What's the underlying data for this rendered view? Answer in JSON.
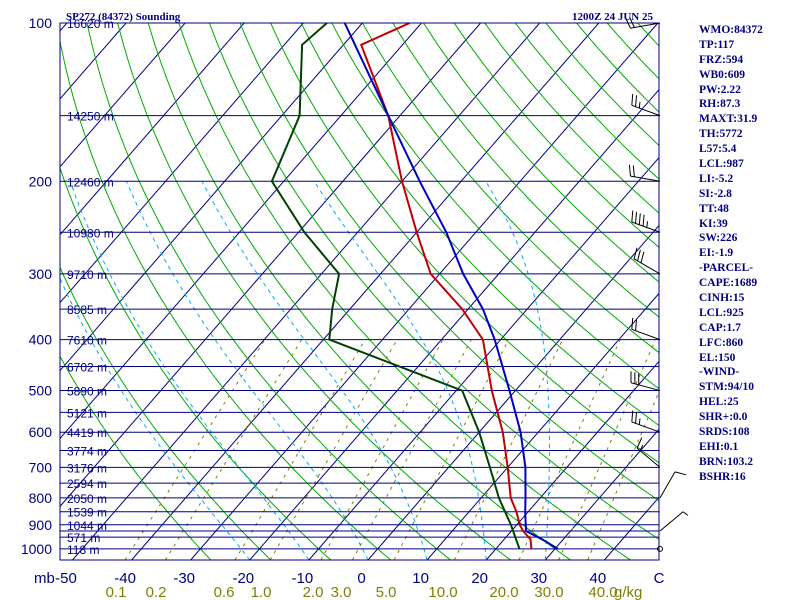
{
  "title_left": "SP272 (84372) Sounding",
  "title_right": "1200Z 24 JUN 25",
  "colors": {
    "axis": "#000080",
    "isobar": "#000080",
    "isotherm": "#000080",
    "dry_adiabat": "#00aa00",
    "moist_adiabat": "#00aaff",
    "mixing_ratio": "#808000",
    "temperature": "#c00000",
    "dewpoint": "#004000",
    "parcel": "#0000c0",
    "wind": "#000000"
  },
  "chart_data": {
    "type": "line",
    "diagram": "skew-t log-p",
    "pressure_axis": {
      "ticks": [
        100,
        200,
        300,
        400,
        500,
        600,
        700,
        800,
        900,
        1000
      ],
      "unit": "mb"
    },
    "temperature_axis": {
      "ticks": [
        -50,
        -40,
        -30,
        -20,
        -10,
        0,
        10,
        20,
        30,
        40
      ],
      "end_label": "C",
      "range": [
        -50,
        50
      ]
    },
    "mixing_ratio_axis": {
      "ticks": [
        "0.1",
        "0.2",
        "0.6",
        "1.0",
        "2.0",
        "3.0",
        "5.0",
        "10.0",
        "20.0",
        "30.0",
        "40.0"
      ],
      "unit": "g/kg"
    },
    "height_labels": [
      {
        "p": 100,
        "label": "16620 m"
      },
      {
        "p": 150,
        "label": "14250 m"
      },
      {
        "p": 200,
        "label": "12460 m"
      },
      {
        "p": 250,
        "label": "10980 m"
      },
      {
        "p": 300,
        "label": "9710 m"
      },
      {
        "p": 350,
        "label": "8585 m"
      },
      {
        "p": 400,
        "label": "7610 m"
      },
      {
        "p": 450,
        "label": "6702 m"
      },
      {
        "p": 500,
        "label": "5890 m"
      },
      {
        "p": 550,
        "label": "5121 m"
      },
      {
        "p": 600,
        "label": "4419 m"
      },
      {
        "p": 650,
        "label": "3774 m"
      },
      {
        "p": 700,
        "label": "3176 m"
      },
      {
        "p": 750,
        "label": "2594 m"
      },
      {
        "p": 800,
        "label": "2050 m"
      },
      {
        "p": 850,
        "label": "1539 m"
      },
      {
        "p": 900,
        "label": "1044 m"
      },
      {
        "p": 950,
        "label": "571 m"
      },
      {
        "p": 1000,
        "label": "118 m"
      }
    ],
    "series": [
      {
        "key": "temperature",
        "points": [
          {
            "p": 1000,
            "t": 26
          },
          {
            "p": 960,
            "t": 24.5
          },
          {
            "p": 925,
            "t": 22
          },
          {
            "p": 900,
            "t": 20.5
          },
          {
            "p": 850,
            "t": 18
          },
          {
            "p": 800,
            "t": 15
          },
          {
            "p": 700,
            "t": 10
          },
          {
            "p": 600,
            "t": 4
          },
          {
            "p": 500,
            "t": -4
          },
          {
            "p": 400,
            "t": -13
          },
          {
            "p": 350,
            "t": -21
          },
          {
            "p": 300,
            "t": -31.5
          },
          {
            "p": 250,
            "t": -40
          },
          {
            "p": 200,
            "t": -50
          },
          {
            "p": 150,
            "t": -62
          },
          {
            "p": 110,
            "t": -77
          },
          {
            "p": 100,
            "t": -72
          }
        ]
      },
      {
        "key": "dewpoint",
        "points": [
          {
            "p": 1000,
            "t": 24
          },
          {
            "p": 900,
            "t": 19
          },
          {
            "p": 800,
            "t": 13
          },
          {
            "p": 700,
            "t": 7
          },
          {
            "p": 600,
            "t": 0
          },
          {
            "p": 500,
            "t": -9
          },
          {
            "p": 400,
            "t": -39
          },
          {
            "p": 350,
            "t": -43
          },
          {
            "p": 300,
            "t": -47
          },
          {
            "p": 250,
            "t": -59
          },
          {
            "p": 200,
            "t": -72
          },
          {
            "p": 150,
            "t": -77
          },
          {
            "p": 110,
            "t": -87
          },
          {
            "p": 100,
            "t": -86
          }
        ]
      },
      {
        "key": "parcel",
        "points": [
          {
            "p": 1000,
            "t": 30.5
          },
          {
            "p": 960,
            "t": 26.5
          },
          {
            "p": 925,
            "t": 22.5
          },
          {
            "p": 900,
            "t": 21.5
          },
          {
            "p": 850,
            "t": 19.5
          },
          {
            "p": 800,
            "t": 17.5
          },
          {
            "p": 700,
            "t": 13
          },
          {
            "p": 600,
            "t": 7
          },
          {
            "p": 500,
            "t": -1
          },
          {
            "p": 400,
            "t": -11
          },
          {
            "p": 350,
            "t": -17.5
          },
          {
            "p": 300,
            "t": -26
          },
          {
            "p": 250,
            "t": -35
          },
          {
            "p": 200,
            "t": -47
          },
          {
            "p": 150,
            "t": -62
          },
          {
            "p": 100,
            "t": -83
          }
        ]
      }
    ],
    "wind_profile": [
      {
        "p": 1000,
        "dir": 90,
        "kt": 0
      },
      {
        "p": 925,
        "dir": 50,
        "kt": 5
      },
      {
        "p": 800,
        "dir": 30,
        "kt": 10
      },
      {
        "p": 700,
        "dir": 310,
        "kt": 15
      },
      {
        "p": 600,
        "dir": 290,
        "kt": 25
      },
      {
        "p": 500,
        "dir": 285,
        "kt": 30
      },
      {
        "p": 400,
        "dir": 290,
        "kt": 20
      },
      {
        "p": 300,
        "dir": 300,
        "kt": 30
      },
      {
        "p": 250,
        "dir": 290,
        "kt": 45
      },
      {
        "p": 200,
        "dir": 280,
        "kt": 20
      },
      {
        "p": 150,
        "dir": 290,
        "kt": 25
      },
      {
        "p": 100,
        "dir": 260,
        "kt": 20
      }
    ]
  },
  "indices": [
    "WMO:84372",
    "TP:117",
    "FRZ:594",
    "WB0:609",
    "PW:2.22",
    "RH:87.3",
    "MAXT:31.9",
    "TH:5772",
    "L57:5.4",
    "LCL:987",
    "LI:-5.2",
    "SI:-2.8",
    "TT:48",
    "KI:39",
    "SW:226",
    "EI:-1.9",
    "-PARCEL-",
    "CAPE:1689",
    "CINH:15",
    "LCL:925",
    "CAP:1.7",
    "LFC:860",
    "EL:150",
    "-WIND-",
    "STM:94/10",
    "HEL:25",
    "SHR+:0.0",
    "SRDS:108",
    "EHI:0.1",
    "BRN:103.2",
    "BSHR:16"
  ]
}
